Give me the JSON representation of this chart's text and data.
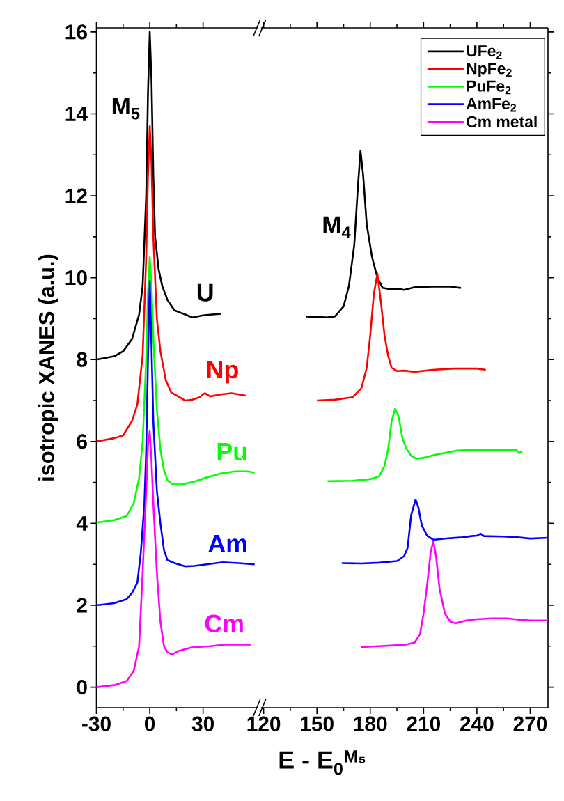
{
  "chart_data": [
    {
      "type": "line",
      "xlim": [
        -30,
        61
      ],
      "xticks": [
        -30,
        0,
        30
      ],
      "ylim": [
        -0.5,
        16.1
      ],
      "yticks": [
        0,
        2,
        4,
        6,
        8,
        10,
        12,
        14,
        16
      ],
      "ylabel": "isotropic XANES (a.u.)",
      "xlabel": "E - E$_{0}$$^{M₅}$",
      "annotations": [
        "M$_{5}$"
      ],
      "series": [
        {
          "name": "U",
          "color": "#000000",
          "x": [
            -30,
            -20,
            -15,
            -10,
            -6,
            -4,
            -2,
            -1,
            0,
            1,
            2,
            3,
            5,
            7,
            10,
            14,
            17,
            20,
            24,
            30,
            40
          ],
          "values": [
            8.0,
            8.08,
            8.2,
            8.5,
            9.1,
            9.8,
            12.0,
            14.5,
            16.0,
            14.8,
            12.5,
            11.0,
            10.2,
            9.8,
            9.45,
            9.2,
            9.15,
            9.1,
            9.03,
            9.08,
            9.12
          ]
        },
        {
          "name": "Np",
          "color": "#ff0000",
          "x": [
            -30,
            -20,
            -15,
            -10,
            -7,
            -4,
            -2,
            -1,
            0,
            1,
            2,
            4,
            6,
            9,
            12,
            16,
            20,
            24,
            28,
            31,
            34,
            40,
            46,
            54
          ],
          "values": [
            6.0,
            6.08,
            6.15,
            6.5,
            6.9,
            8.1,
            10.5,
            12.5,
            13.7,
            12.8,
            11.0,
            9.0,
            8.2,
            7.5,
            7.2,
            7.1,
            7.0,
            7.02,
            7.08,
            7.18,
            7.1,
            7.15,
            7.18,
            7.12
          ]
        },
        {
          "name": "Pu",
          "color": "#00ff00",
          "x": [
            -30,
            -20,
            -13,
            -9,
            -6,
            -4,
            -2,
            -1,
            0,
            1,
            2,
            4,
            6,
            8,
            10,
            13,
            18,
            25,
            32,
            40,
            48,
            55,
            59
          ],
          "values": [
            4.02,
            4.08,
            4.18,
            4.5,
            5.1,
            6.0,
            8.0,
            9.6,
            10.5,
            9.8,
            8.5,
            6.8,
            5.8,
            5.3,
            5.05,
            4.95,
            4.95,
            5.02,
            5.12,
            5.22,
            5.27,
            5.27,
            5.24
          ]
        },
        {
          "name": "Am",
          "color": "#0000ff",
          "x": [
            -30,
            -20,
            -13,
            -10,
            -7,
            -5,
            -3,
            -2,
            -1,
            0,
            1,
            2,
            4,
            6,
            8,
            10,
            14,
            20,
            25,
            32,
            41,
            50,
            59
          ],
          "values": [
            2.0,
            2.05,
            2.15,
            2.3,
            2.55,
            3.3,
            4.5,
            5.8,
            8.0,
            9.92,
            8.3,
            6.5,
            4.8,
            4.0,
            3.35,
            3.1,
            3.03,
            2.95,
            2.96,
            3.0,
            3.05,
            3.03,
            3.0
          ]
        },
        {
          "name": "Cm",
          "color": "#ff00ff",
          "x": [
            -30,
            -20,
            -13,
            -9,
            -6,
            -4,
            -2,
            -1,
            0,
            1,
            2,
            4,
            6,
            8,
            10,
            12.6,
            16,
            23.6,
            34,
            42,
            57
          ],
          "values": [
            0.0,
            0.05,
            0.15,
            0.4,
            1.0,
            2.8,
            4.8,
            5.9,
            6.25,
            5.5,
            4.5,
            2.8,
            1.6,
            1.0,
            0.85,
            0.8,
            0.88,
            0.97,
            1.0,
            1.04,
            1.04
          ]
        }
      ]
    },
    {
      "type": "line",
      "xlim": [
        118.5,
        280
      ],
      "xticks": [
        120,
        150,
        180,
        210,
        240,
        270
      ],
      "ylim": [
        -0.5,
        16.1
      ],
      "yticks": [
        0,
        2,
        4,
        6,
        8,
        10,
        12,
        14,
        16
      ],
      "tick_labels": "x",
      "legend": "top right",
      "annotations": [
        "M$_{4}$"
      ],
      "series": [
        {
          "name": "UFe$_{2}$",
          "color": "#000000",
          "x": [
            144,
            155,
            160,
            165,
            168,
            171,
            173,
            174.5,
            176,
            178,
            181,
            184,
            187,
            191,
            196,
            199,
            205,
            215,
            225,
            231
          ],
          "values": [
            9.05,
            9.03,
            9.05,
            9.3,
            9.8,
            10.8,
            12.2,
            13.1,
            12.5,
            11.3,
            10.5,
            10.0,
            9.75,
            9.72,
            9.73,
            9.7,
            9.77,
            9.78,
            9.78,
            9.75
          ]
        },
        {
          "name": "NpFe$_{2}$",
          "color": "#ff0000",
          "x": [
            150,
            160,
            170,
            175,
            178,
            180,
            182,
            184,
            186,
            188,
            190,
            192,
            195,
            199,
            205,
            215,
            227,
            240,
            245
          ],
          "values": [
            7.0,
            7.02,
            7.08,
            7.3,
            7.8,
            8.6,
            9.6,
            10.1,
            9.4,
            8.6,
            8.1,
            7.8,
            7.72,
            7.73,
            7.7,
            7.75,
            7.78,
            7.78,
            7.75
          ]
        },
        {
          "name": "PuFe$_{2}$",
          "color": "#00ff00",
          "x": [
            156,
            170,
            180,
            185,
            188,
            190,
            192,
            194,
            196,
            198,
            200,
            203,
            206,
            210,
            216,
            222,
            229,
            240,
            250,
            262,
            264,
            265.5
          ],
          "values": [
            5.03,
            5.04,
            5.08,
            5.15,
            5.4,
            5.8,
            6.5,
            6.8,
            6.6,
            6.1,
            5.85,
            5.65,
            5.58,
            5.6,
            5.67,
            5.72,
            5.78,
            5.8,
            5.8,
            5.8,
            5.72,
            5.77
          ]
        },
        {
          "name": "AmFe$_{2}$",
          "color": "#0000ff",
          "x": [
            164,
            175,
            185,
            195,
            199,
            201,
            203,
            205.5,
            207,
            209,
            212,
            215.5,
            220,
            225,
            232,
            237,
            240,
            242,
            244,
            255,
            263,
            270,
            280
          ],
          "values": [
            3.03,
            3.02,
            3.04,
            3.08,
            3.2,
            3.4,
            4.2,
            4.58,
            4.4,
            3.95,
            3.7,
            3.6,
            3.62,
            3.64,
            3.66,
            3.69,
            3.7,
            3.75,
            3.69,
            3.68,
            3.66,
            3.63,
            3.65
          ]
        },
        {
          "name": "Cm metal",
          "color": "#ff00ff",
          "x": [
            175,
            185,
            193,
            200,
            205,
            208,
            210,
            212,
            214,
            215.5,
            217,
            219,
            222,
            225,
            228,
            234,
            240,
            248,
            257,
            263,
            270,
            280
          ],
          "values": [
            0.98,
            1.0,
            1.02,
            1.04,
            1.09,
            1.3,
            1.8,
            2.5,
            3.3,
            3.57,
            3.2,
            2.4,
            1.8,
            1.6,
            1.56,
            1.63,
            1.66,
            1.68,
            1.68,
            1.65,
            1.63,
            1.63
          ]
        }
      ]
    }
  ]
}
